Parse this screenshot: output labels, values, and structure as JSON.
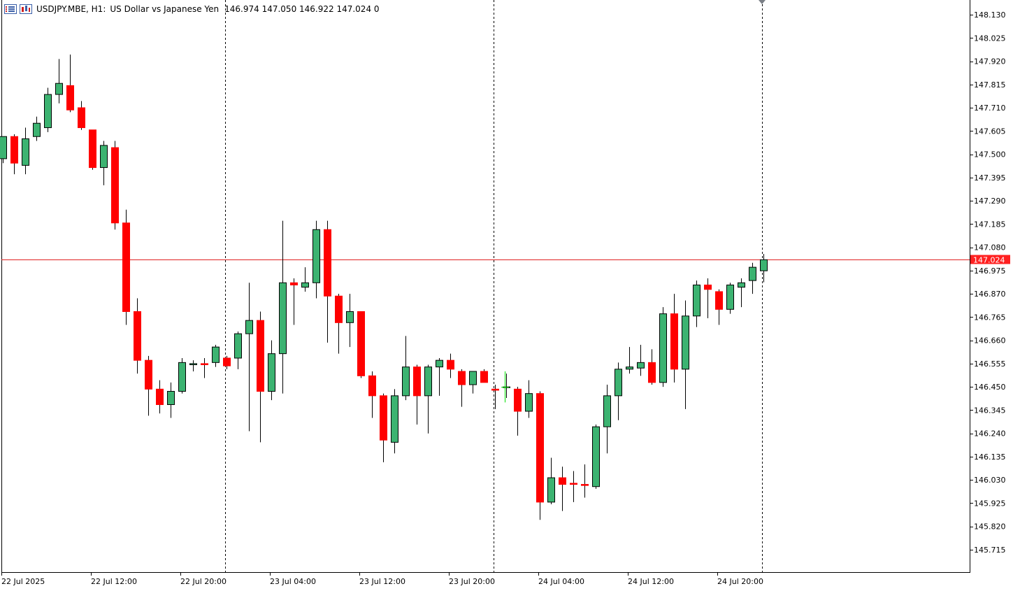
{
  "header": {
    "symbol": "USDJPY.MBE, H1:",
    "description": "US Dollar vs Japanese Yen",
    "ohlc": "146.974 147.050 146.922 147.024  0"
  },
  "colors": {
    "bull": "#3cb371",
    "bear": "#ff0000",
    "outline": "#000000",
    "current_price_line": "#e02020",
    "current_price_label_bg": "#ff2020",
    "doji_new": "#00e000"
  },
  "price_axis": {
    "labels": [
      "148.130",
      "148.025",
      "147.920",
      "147.815",
      "147.710",
      "147.605",
      "147.500",
      "147.395",
      "147.290",
      "147.185",
      "147.080",
      "146.975",
      "146.870",
      "146.765",
      "146.660",
      "146.555",
      "146.450",
      "146.345",
      "146.240",
      "146.135",
      "146.030",
      "145.925",
      "145.820",
      "145.715"
    ],
    "current_price": "147.024"
  },
  "time_axis": {
    "labels": [
      "22 Jul 2025",
      "22 Jul 12:00",
      "22 Jul 20:00",
      "23 Jul 04:00",
      "23 Jul 12:00",
      "23 Jul 20:00",
      "24 Jul 04:00",
      "24 Jul 12:00",
      "24 Jul 20:00"
    ]
  },
  "chart_data": {
    "type": "candlestick",
    "symbol": "USDJPY.MBE",
    "timeframe": "H1",
    "y_range": [
      145.67,
      148.18
    ],
    "candles": [
      {
        "o": 147.48,
        "h": 147.58,
        "l": 147.46,
        "c": 147.58
      },
      {
        "o": 147.58,
        "h": 147.59,
        "l": 147.41,
        "c": 147.46
      },
      {
        "o": 147.45,
        "h": 147.62,
        "l": 147.41,
        "c": 147.57
      },
      {
        "o": 147.58,
        "h": 147.67,
        "l": 147.56,
        "c": 147.64
      },
      {
        "o": 147.62,
        "h": 147.8,
        "l": 147.6,
        "c": 147.77
      },
      {
        "o": 147.77,
        "h": 147.93,
        "l": 147.73,
        "c": 147.82
      },
      {
        "o": 147.81,
        "h": 147.95,
        "l": 147.69,
        "c": 147.7
      },
      {
        "o": 147.71,
        "h": 147.74,
        "l": 147.61,
        "c": 147.62
      },
      {
        "o": 147.61,
        "h": 147.61,
        "l": 147.43,
        "c": 147.44
      },
      {
        "o": 147.44,
        "h": 147.56,
        "l": 147.36,
        "c": 147.54
      },
      {
        "o": 147.53,
        "h": 147.56,
        "l": 147.16,
        "c": 147.19
      },
      {
        "o": 147.19,
        "h": 147.25,
        "l": 146.73,
        "c": 146.79
      },
      {
        "o": 146.79,
        "h": 146.85,
        "l": 146.51,
        "c": 146.57
      },
      {
        "o": 146.57,
        "h": 146.59,
        "l": 146.32,
        "c": 146.44
      },
      {
        "o": 146.44,
        "h": 146.48,
        "l": 146.33,
        "c": 146.37
      },
      {
        "o": 146.37,
        "h": 146.47,
        "l": 146.31,
        "c": 146.43
      },
      {
        "o": 146.43,
        "h": 146.58,
        "l": 146.42,
        "c": 146.56
      },
      {
        "o": 146.55,
        "h": 146.57,
        "l": 146.52,
        "c": 146.555
      },
      {
        "o": 146.555,
        "h": 146.58,
        "l": 146.49,
        "c": 146.55
      },
      {
        "o": 146.56,
        "h": 146.64,
        "l": 146.54,
        "c": 146.63
      },
      {
        "o": 146.58,
        "h": 146.59,
        "l": 146.53,
        "c": 146.545
      },
      {
        "o": 146.58,
        "h": 146.7,
        "l": 146.53,
        "c": 146.69
      },
      {
        "o": 146.69,
        "h": 146.92,
        "l": 146.25,
        "c": 146.75
      },
      {
        "o": 146.75,
        "h": 146.79,
        "l": 146.2,
        "c": 146.43
      },
      {
        "o": 146.43,
        "h": 146.66,
        "l": 146.39,
        "c": 146.6
      },
      {
        "o": 146.6,
        "h": 147.2,
        "l": 146.42,
        "c": 146.92
      },
      {
        "o": 146.92,
        "h": 146.94,
        "l": 146.73,
        "c": 146.91
      },
      {
        "o": 146.9,
        "h": 146.99,
        "l": 146.88,
        "c": 146.92
      },
      {
        "o": 146.92,
        "h": 147.2,
        "l": 146.85,
        "c": 147.16
      },
      {
        "o": 147.16,
        "h": 147.2,
        "l": 146.65,
        "c": 146.86
      },
      {
        "o": 146.86,
        "h": 146.87,
        "l": 146.6,
        "c": 146.74
      },
      {
        "o": 146.74,
        "h": 146.87,
        "l": 146.63,
        "c": 146.79
      },
      {
        "o": 146.79,
        "h": 146.79,
        "l": 146.49,
        "c": 146.5
      },
      {
        "o": 146.5,
        "h": 146.52,
        "l": 146.31,
        "c": 146.41
      },
      {
        "o": 146.41,
        "h": 146.42,
        "l": 146.11,
        "c": 146.21
      },
      {
        "o": 146.2,
        "h": 146.44,
        "l": 146.15,
        "c": 146.41
      },
      {
        "o": 146.41,
        "h": 146.68,
        "l": 146.39,
        "c": 146.54
      },
      {
        "o": 146.54,
        "h": 146.55,
        "l": 146.28,
        "c": 146.41
      },
      {
        "o": 146.41,
        "h": 146.55,
        "l": 146.24,
        "c": 146.54
      },
      {
        "o": 146.54,
        "h": 146.58,
        "l": 146.41,
        "c": 146.57
      },
      {
        "o": 146.57,
        "h": 146.6,
        "l": 146.49,
        "c": 146.53
      },
      {
        "o": 146.52,
        "h": 146.53,
        "l": 146.36,
        "c": 146.46
      },
      {
        "o": 146.46,
        "h": 146.52,
        "l": 146.42,
        "c": 146.52
      },
      {
        "o": 146.52,
        "h": 146.53,
        "l": 146.47,
        "c": 146.47
      },
      {
        "o": 146.44,
        "h": 146.46,
        "l": 146.35,
        "c": 146.435
      },
      {
        "o": 146.45,
        "h": 146.51,
        "l": 146.4,
        "c": 146.45
      },
      {
        "o": 146.44,
        "h": 146.45,
        "l": 146.23,
        "c": 146.34
      },
      {
        "o": 146.34,
        "h": 146.48,
        "l": 146.31,
        "c": 146.42
      },
      {
        "o": 146.42,
        "h": 146.43,
        "l": 145.85,
        "c": 145.93
      },
      {
        "o": 145.93,
        "h": 146.13,
        "l": 145.92,
        "c": 146.04
      },
      {
        "o": 146.04,
        "h": 146.09,
        "l": 145.89,
        "c": 146.01
      },
      {
        "o": 146.015,
        "h": 146.07,
        "l": 145.93,
        "c": 146.01
      },
      {
        "o": 146.01,
        "h": 146.1,
        "l": 145.95,
        "c": 146.005
      },
      {
        "o": 146.0,
        "h": 146.28,
        "l": 145.99,
        "c": 146.27
      },
      {
        "o": 146.27,
        "h": 146.46,
        "l": 146.15,
        "c": 146.41
      },
      {
        "o": 146.41,
        "h": 146.56,
        "l": 146.3,
        "c": 146.53
      },
      {
        "o": 146.53,
        "h": 146.63,
        "l": 146.51,
        "c": 146.54
      },
      {
        "o": 146.535,
        "h": 146.64,
        "l": 146.5,
        "c": 146.56
      },
      {
        "o": 146.56,
        "h": 146.62,
        "l": 146.46,
        "c": 146.47
      },
      {
        "o": 146.47,
        "h": 146.81,
        "l": 146.45,
        "c": 146.78
      },
      {
        "o": 146.78,
        "h": 146.87,
        "l": 146.47,
        "c": 146.53
      },
      {
        "o": 146.53,
        "h": 146.84,
        "l": 146.35,
        "c": 146.77
      },
      {
        "o": 146.77,
        "h": 146.93,
        "l": 146.72,
        "c": 146.91
      },
      {
        "o": 146.91,
        "h": 146.94,
        "l": 146.76,
        "c": 146.89
      },
      {
        "o": 146.88,
        "h": 146.89,
        "l": 146.73,
        "c": 146.8
      },
      {
        "o": 146.8,
        "h": 146.92,
        "l": 146.78,
        "c": 146.91
      },
      {
        "o": 146.9,
        "h": 146.94,
        "l": 146.81,
        "c": 146.92
      },
      {
        "o": 146.93,
        "h": 147.01,
        "l": 146.87,
        "c": 146.99
      },
      {
        "o": 146.974,
        "h": 147.05,
        "l": 146.922,
        "c": 147.024
      }
    ]
  }
}
